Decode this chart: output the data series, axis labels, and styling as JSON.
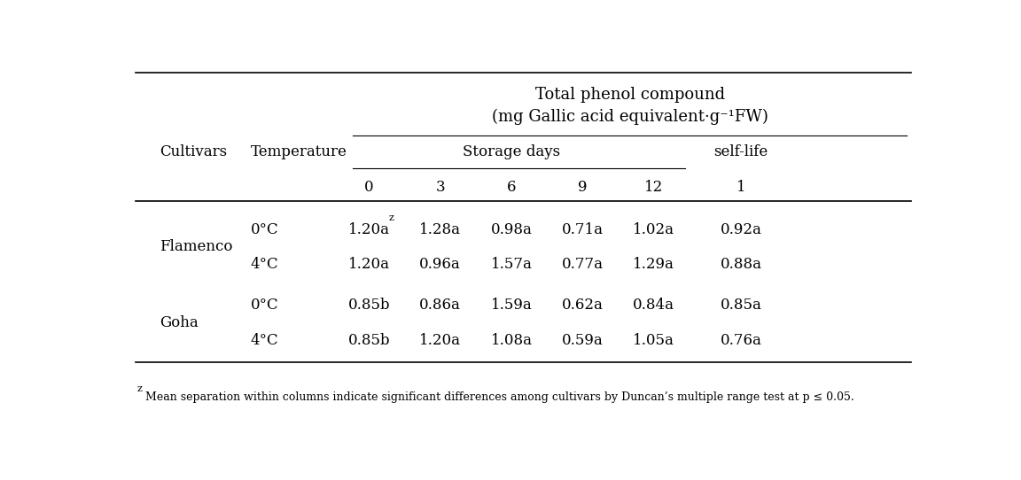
{
  "title_line1": "Total phenol compound",
  "title_line2": "(mg Gallic acid equivalent·g⁻¹FW)",
  "col_header_1": "Cultivars",
  "col_header_2": "Temperature",
  "storage_days_label": "Storage days",
  "selflife_label": "self-life",
  "day_cols": [
    "0",
    "3",
    "6",
    "9",
    "12",
    "1"
  ],
  "rows": [
    {
      "cultivar": "Flamenco",
      "temp": "0°C",
      "values": [
        "1.20a",
        "1.28a",
        "0.98a",
        "0.71a",
        "1.02a",
        "0.92a"
      ],
      "has_superz": [
        true,
        false,
        false,
        false,
        false,
        false
      ]
    },
    {
      "cultivar": "",
      "temp": "4°C",
      "values": [
        "1.20a",
        "0.96a",
        "1.57a",
        "0.77a",
        "1.29a",
        "0.88a"
      ],
      "has_superz": [
        false,
        false,
        false,
        false,
        false,
        false
      ]
    },
    {
      "cultivar": "Goha",
      "temp": "0°C",
      "values": [
        "0.85b",
        "0.86a",
        "1.59a",
        "0.62a",
        "0.84a",
        "0.85a"
      ],
      "has_superz": [
        false,
        false,
        false,
        false,
        false,
        false
      ]
    },
    {
      "cultivar": "",
      "temp": "4°C",
      "values": [
        "0.85b",
        "1.20a",
        "1.08a",
        "0.59a",
        "1.05a",
        "0.76a"
      ],
      "has_superz": [
        false,
        false,
        false,
        false,
        false,
        false
      ]
    }
  ],
  "footnote": "zMean separation within columns indicate significant differences among cultivars by Duncan’s multiple range test at p ≤ 0.05.",
  "bg_color": "#ffffff",
  "text_color": "#000000",
  "font_size": 12,
  "font_size_small": 9,
  "font_family": "DejaVu Serif"
}
